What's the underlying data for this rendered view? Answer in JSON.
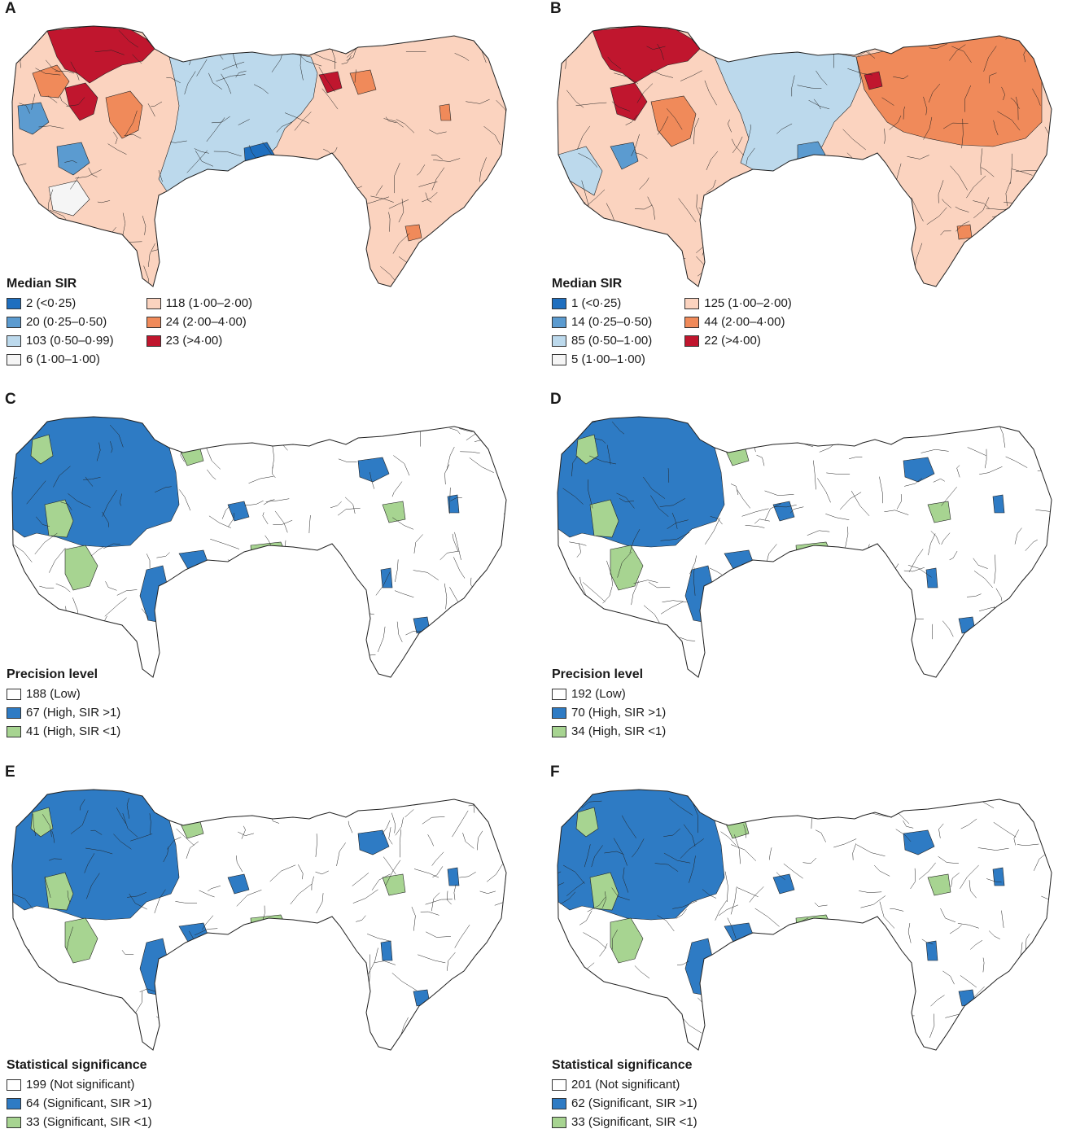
{
  "colors": {
    "sir_lt025": "#1f6fbf",
    "sir_025_050": "#5b9bd0",
    "sir_050_099": "#bcd9ec",
    "sir_100": "#f5f5f5",
    "sir_100_200": "#fbd3bf",
    "sir_200_400": "#f08a5a",
    "sir_gt400": "#c0162e",
    "low": "#ffffff",
    "high_gt1": "#2e7bc4",
    "high_lt1": "#a7d491",
    "outline": "#222222"
  },
  "panels": [
    {
      "letter": "A",
      "legend_title": "Median SIR",
      "legend_type": "sir",
      "items": [
        {
          "label": "2 (<0·25)",
          "color": "#1f6fbf"
        },
        {
          "label": "20 (0·25–0·50)",
          "color": "#5b9bd0"
        },
        {
          "label": "103 (0·50–0·99)",
          "color": "#bcd9ec"
        },
        {
          "label": "6 (1·00–1·00)",
          "color": "#f5f5f5"
        },
        {
          "label": "118 (1·00–2·00)",
          "color": "#fbd3bf"
        },
        {
          "label": "24 (2·00–4·00)",
          "color": "#f08a5a"
        },
        {
          "label": "23 (>4·00)",
          "color": "#c0162e"
        }
      ]
    },
    {
      "letter": "B",
      "legend_title": "Median SIR",
      "legend_type": "sir",
      "items": [
        {
          "label": "1 (<0·25)",
          "color": "#1f6fbf"
        },
        {
          "label": "14 (0·25–0·50)",
          "color": "#5b9bd0"
        },
        {
          "label": "85 (0·50–1·00)",
          "color": "#bcd9ec"
        },
        {
          "label": "5 (1·00–1·00)",
          "color": "#f5f5f5"
        },
        {
          "label": "125 (1·00–2·00)",
          "color": "#fbd3bf"
        },
        {
          "label": "44 (2·00–4·00)",
          "color": "#f08a5a"
        },
        {
          "label": "22 (>4·00)",
          "color": "#c0162e"
        }
      ]
    },
    {
      "letter": "C",
      "legend_title": "Precision level",
      "legend_type": "binary",
      "items": [
        {
          "label": "188 (Low)",
          "color": "#ffffff"
        },
        {
          "label": "67 (High, SIR >1)",
          "color": "#2e7bc4"
        },
        {
          "label": "41 (High, SIR <1)",
          "color": "#a7d491"
        }
      ]
    },
    {
      "letter": "D",
      "legend_title": "Precision level",
      "legend_type": "binary",
      "items": [
        {
          "label": "192 (Low)",
          "color": "#ffffff"
        },
        {
          "label": "70 (High, SIR >1)",
          "color": "#2e7bc4"
        },
        {
          "label": "34 (High, SIR <1)",
          "color": "#a7d491"
        }
      ]
    },
    {
      "letter": "E",
      "legend_title": "Statistical significance",
      "legend_type": "binary",
      "items": [
        {
          "label": "199 (Not significant)",
          "color": "#ffffff"
        },
        {
          "label": "64 (Significant, SIR >1)",
          "color": "#2e7bc4"
        },
        {
          "label": "33 (Significant, SIR <1)",
          "color": "#a7d491"
        }
      ]
    },
    {
      "letter": "F",
      "legend_title": "Statistical significance",
      "legend_type": "binary",
      "items": [
        {
          "label": "201 (Not significant)",
          "color": "#ffffff"
        },
        {
          "label": "62  (Significant, SIR >1)",
          "color": "#2e7bc4"
        },
        {
          "label": "33 (Significant, SIR <1)",
          "color": "#a7d491"
        }
      ]
    }
  ]
}
